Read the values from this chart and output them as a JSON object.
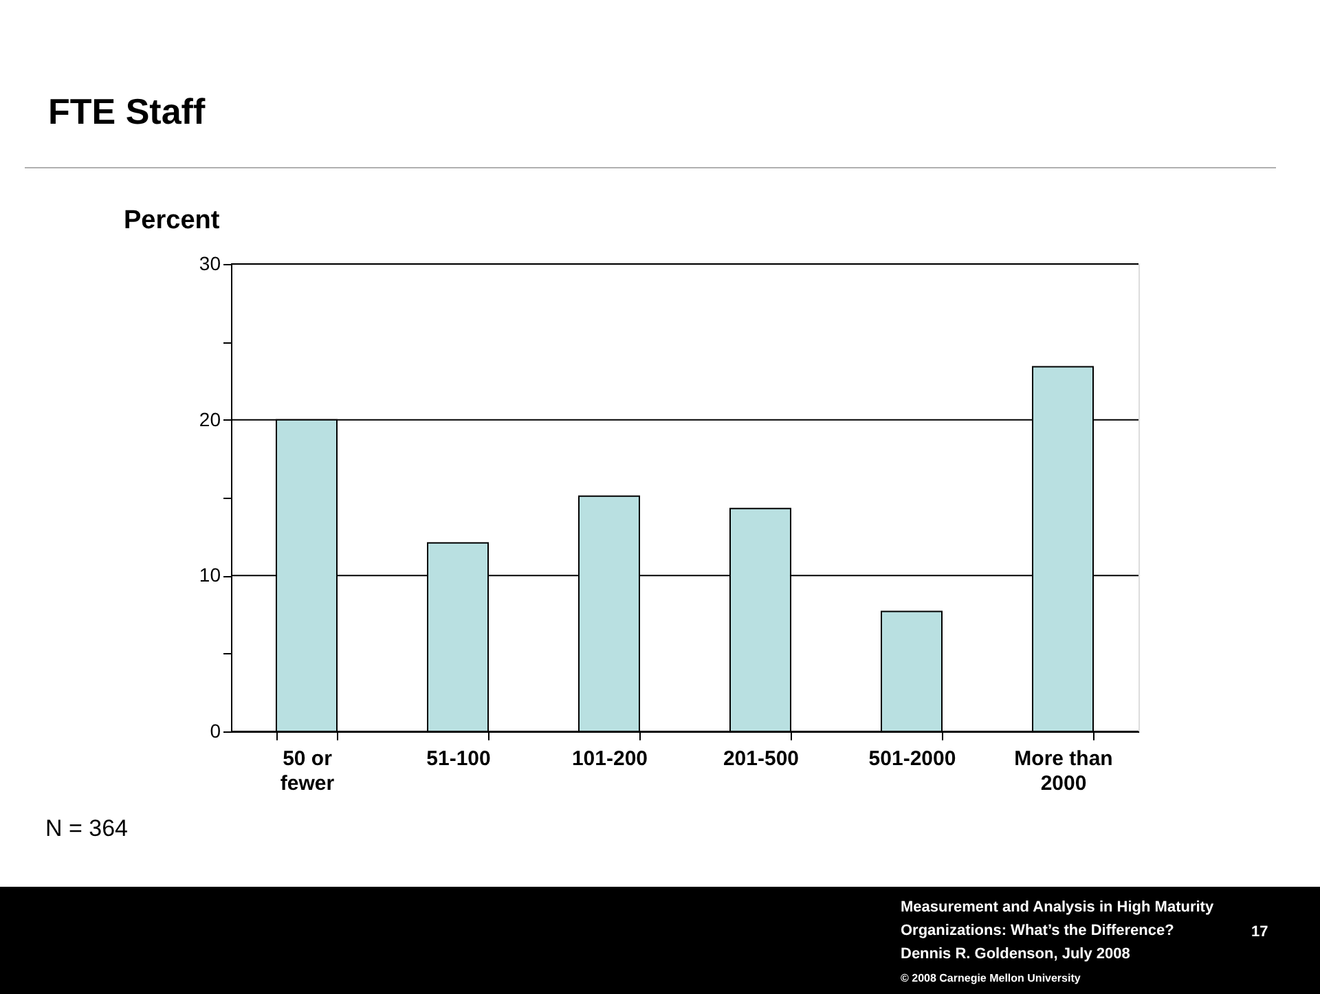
{
  "chart_data": {
    "type": "bar",
    "title": "FTE Staff",
    "ylabel": "Percent",
    "categories": [
      "50 or\nfewer",
      "51-100",
      "101-200",
      "201-500",
      "501-2000",
      "More than\n2000"
    ],
    "values": [
      20.0,
      12.1,
      15.1,
      14.3,
      7.7,
      23.4
    ],
    "color": "#b9e0e1",
    "ylim": [
      0,
      30
    ],
    "yticks": [
      0,
      {
        "value": 5,
        "label": null
      },
      10,
      {
        "value": 15,
        "label": null
      },
      20,
      {
        "value": 25,
        "label": null
      },
      30
    ],
    "grid": "y",
    "annotations": [
      "N = 364",
      "Measurement and Analysis in High Maturity Organizations: What’s the Difference?",
      "Dennis R. Goldenson, July 2008",
      "© 2008 Carnegie Mellon University",
      "17"
    ]
  }
}
